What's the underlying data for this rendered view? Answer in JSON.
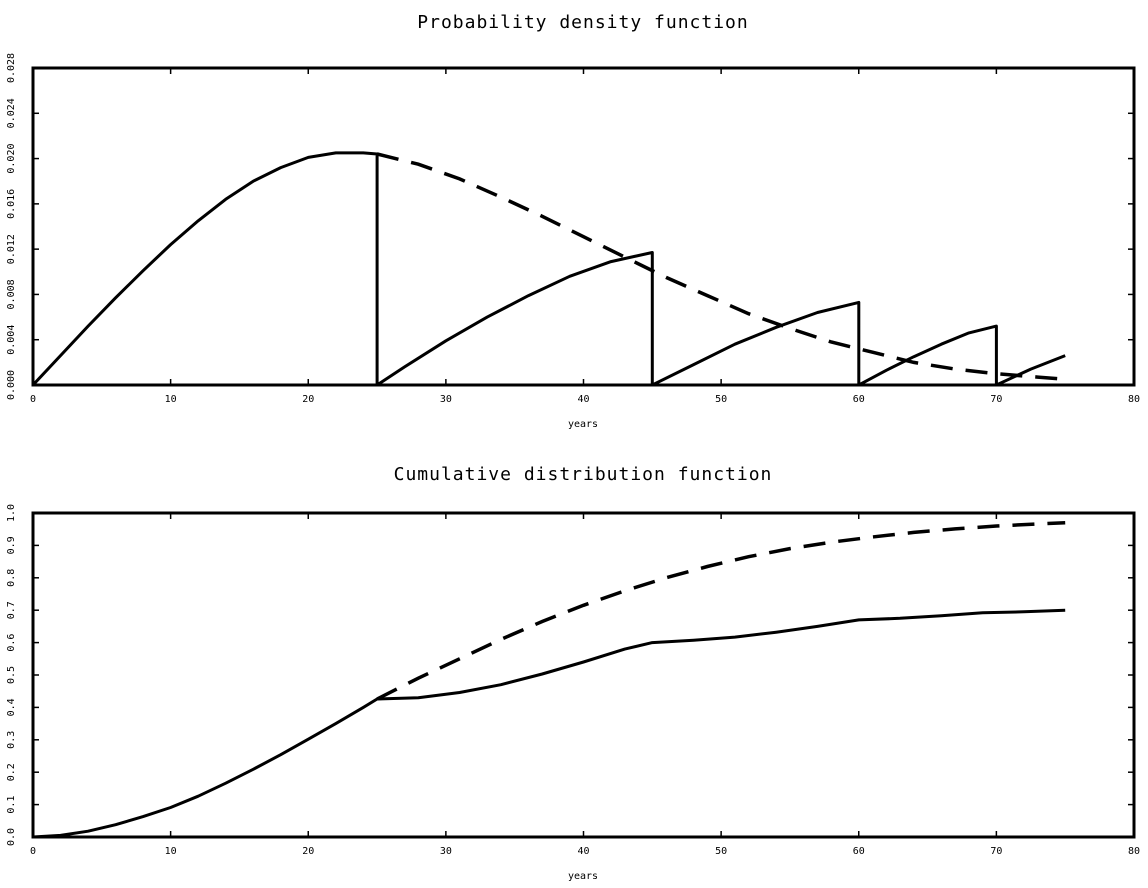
{
  "chart_data": [
    {
      "type": "line",
      "title": "Probability density function",
      "xlabel": "years",
      "ylabel": "",
      "xlim": [
        0,
        80
      ],
      "ylim": [
        0,
        0.028
      ],
      "xticks": [
        0,
        10,
        20,
        30,
        40,
        50,
        60,
        70,
        80
      ],
      "xtick_labels": [
        "0",
        "10",
        "20",
        "30",
        "40",
        "50",
        "60",
        "70",
        "80"
      ],
      "yticks": [
        0,
        0.004,
        0.008,
        0.012,
        0.016,
        0.02,
        0.024,
        0.028
      ],
      "ytick_labels": [
        "0.000",
        "0.004",
        "0.008",
        "0.012",
        "0.016",
        "0.020",
        "0.024",
        "0.028"
      ],
      "grid": false,
      "series": [
        {
          "style": "solid",
          "x": [
            0,
            2,
            4,
            6,
            8,
            10,
            12,
            14,
            16,
            18,
            20,
            22,
            24,
            25,
            25,
            25,
            27,
            30,
            33,
            36,
            39,
            42,
            45,
            45,
            45,
            48,
            51,
            54,
            57,
            60,
            60,
            60,
            62,
            64,
            66,
            68,
            70,
            70,
            70,
            72.5,
            75
          ],
          "y": [
            0,
            0.0026,
            0.0052,
            0.0077,
            0.0101,
            0.0124,
            0.0145,
            0.0164,
            0.018,
            0.0192,
            0.0201,
            0.0205,
            0.0205,
            0.0204,
            0,
            0,
            0.0016,
            0.0039,
            0.006,
            0.0079,
            0.0096,
            0.0109,
            0.0117,
            0,
            0,
            0.0018,
            0.0036,
            0.0051,
            0.0064,
            0.0073,
            0,
            0,
            0.0013,
            0.0025,
            0.0036,
            0.0046,
            0.0052,
            0,
            0,
            0.0014,
            0.0026
          ]
        },
        {
          "style": "dashed",
          "x": [
            25,
            28,
            31,
            34,
            37,
            40,
            43,
            46,
            49,
            52,
            55,
            58,
            61,
            64,
            67,
            70,
            73,
            75
          ],
          "y": [
            0.0204,
            0.0195,
            0.0182,
            0.0166,
            0.0149,
            0.0131,
            0.0113,
            0.0095,
            0.0079,
            0.0063,
            0.005,
            0.0038,
            0.0029,
            0.002,
            0.0014,
            0.001,
            0.0007,
            0.0005
          ]
        }
      ]
    },
    {
      "type": "line",
      "title": "Cumulative distribution function",
      "xlabel": "years",
      "ylabel": "",
      "xlim": [
        0,
        80
      ],
      "ylim": [
        0,
        1.0
      ],
      "xticks": [
        0,
        10,
        20,
        30,
        40,
        50,
        60,
        70,
        80
      ],
      "xtick_labels": [
        "0",
        "10",
        "20",
        "30",
        "40",
        "50",
        "60",
        "70",
        "80"
      ],
      "yticks": [
        0,
        0.1,
        0.2,
        0.3,
        0.4,
        0.5,
        0.6,
        0.7,
        0.8,
        0.9,
        1.0
      ],
      "ytick_labels": [
        "0.0",
        "0.1",
        "0.2",
        "0.3",
        "0.4",
        "0.5",
        "0.6",
        "0.7",
        "0.8",
        "0.9",
        "1.0"
      ],
      "grid": false,
      "series": [
        {
          "style": "solid",
          "x": [
            0,
            2,
            4,
            6,
            8,
            10,
            12,
            14,
            16,
            18,
            20,
            22,
            24,
            25,
            28,
            31,
            34,
            37,
            40,
            43,
            45,
            48,
            51,
            54,
            57,
            60,
            63,
            66,
            69,
            72,
            75
          ],
          "y": [
            0,
            0.005,
            0.018,
            0.038,
            0.063,
            0.091,
            0.126,
            0.166,
            0.209,
            0.254,
            0.302,
            0.35,
            0.4,
            0.426,
            0.43,
            0.446,
            0.47,
            0.503,
            0.54,
            0.58,
            0.6,
            0.607,
            0.617,
            0.632,
            0.65,
            0.67,
            0.675,
            0.683,
            0.692,
            0.695,
            0.7
          ]
        },
        {
          "style": "dashed",
          "x": [
            25,
            28,
            31,
            34,
            37,
            40,
            43,
            46,
            49,
            52,
            55,
            58,
            61,
            64,
            67,
            70,
            73,
            75
          ],
          "y": [
            0.426,
            0.49,
            0.55,
            0.61,
            0.665,
            0.715,
            0.76,
            0.8,
            0.835,
            0.865,
            0.89,
            0.91,
            0.926,
            0.94,
            0.951,
            0.96,
            0.966,
            0.97
          ]
        }
      ]
    }
  ]
}
